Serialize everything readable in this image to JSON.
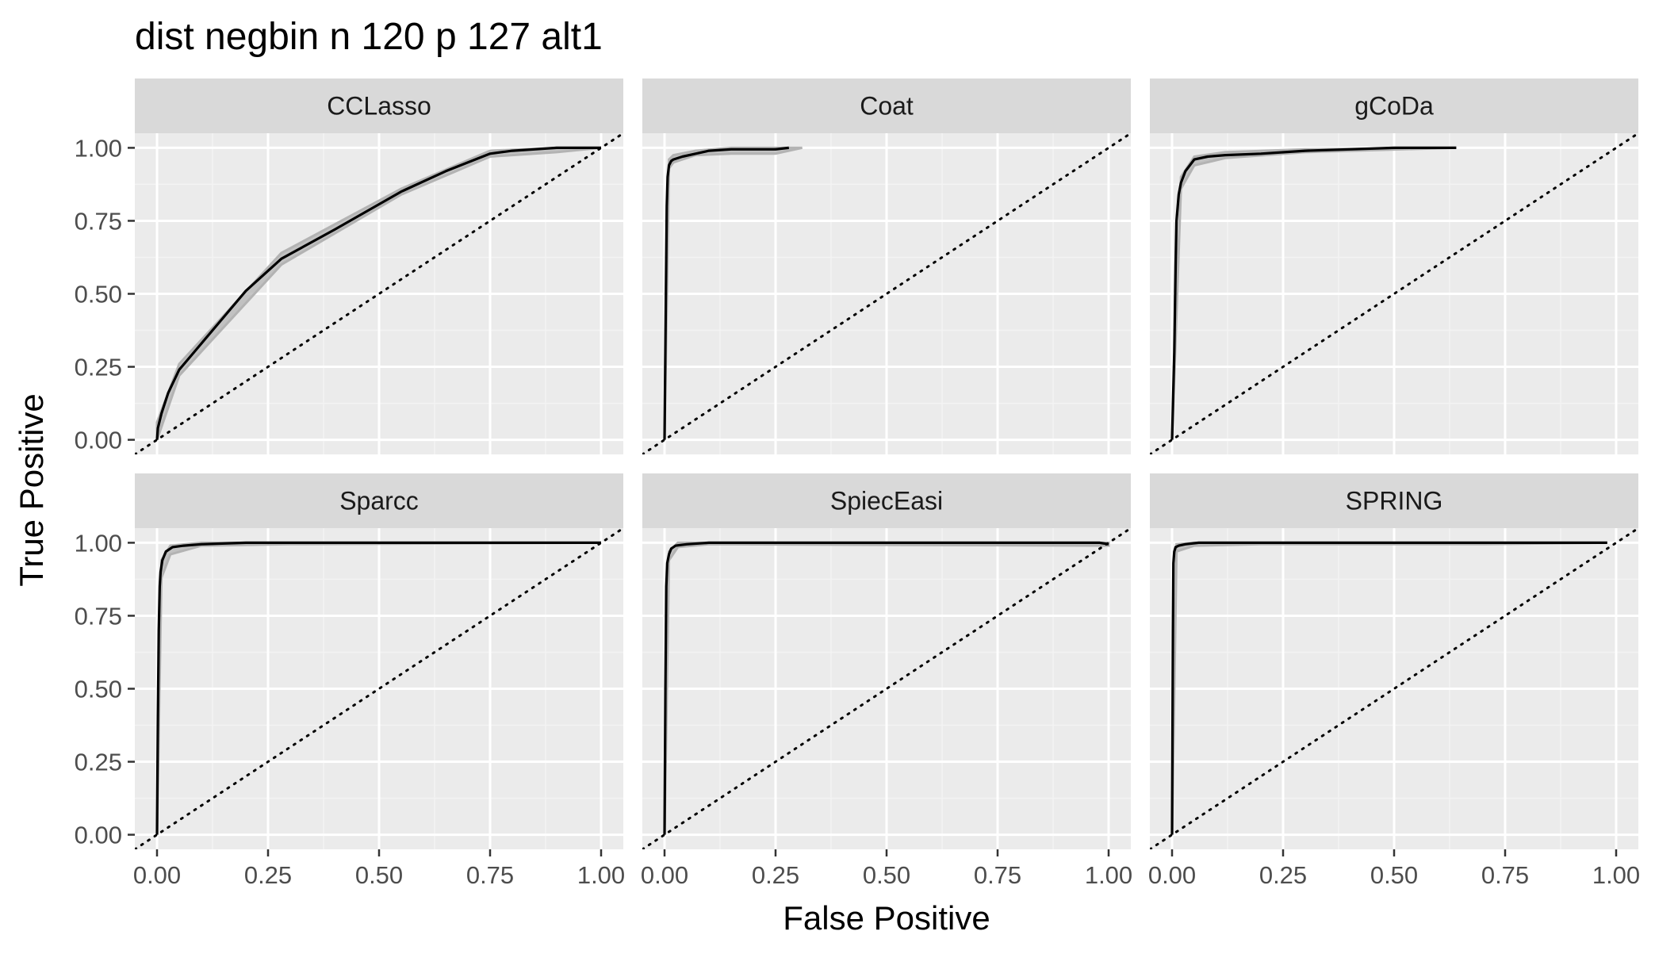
{
  "chart_data": {
    "type": "line",
    "title": "dist negbin n 120 p 127 alt1",
    "xlabel": "False Positive",
    "ylabel": "True Positive",
    "xlim": [
      -0.05,
      1.05
    ],
    "ylim": [
      -0.05,
      1.05
    ],
    "x_ticks": [
      0.0,
      0.25,
      0.5,
      0.75,
      1.0
    ],
    "y_ticks": [
      0.0,
      0.25,
      0.5,
      0.75,
      1.0
    ],
    "x_tick_labels": [
      "0.00",
      "0.25",
      "0.50",
      "0.75",
      "1.00"
    ],
    "y_tick_labels": [
      "0.00",
      "0.25",
      "0.50",
      "0.75",
      "1.00"
    ],
    "grid": true,
    "reference_line": {
      "style": "dotted",
      "from": [
        -0.05,
        -0.05
      ],
      "to": [
        1.05,
        1.05
      ]
    },
    "colors": {
      "panel_bg": "#ebebeb",
      "strip_bg": "#d9d9d9",
      "grid_major": "#ffffff",
      "grid_minor": "#f3f3f3",
      "curve": "#000000",
      "band": "#b3b3b3",
      "text": "#1a1a1a",
      "tick_text": "#4d4d4d"
    },
    "panels": [
      {
        "name": "CCLasso",
        "x": [
          0,
          0.002,
          0.01,
          0.025,
          0.05,
          0.1,
          0.15,
          0.2,
          0.28,
          0.4,
          0.55,
          0.65,
          0.75,
          0.8,
          0.85,
          0.9,
          0.95,
          1.0
        ],
        "y": [
          0,
          0.04,
          0.09,
          0.16,
          0.24,
          0.33,
          0.42,
          0.51,
          0.62,
          0.72,
          0.85,
          0.92,
          0.98,
          0.99,
          0.995,
          1.0,
          1.0,
          1.0
        ],
        "band": {
          "x": [
            0,
            0.05,
            0.28,
            0.55,
            0.75,
            0.9,
            1.0
          ],
          "lower": [
            0,
            0.22,
            0.6,
            0.84,
            0.97,
            0.985,
            1.0
          ],
          "upper": [
            0.06,
            0.26,
            0.64,
            0.86,
            0.99,
            1.0,
            1.0
          ]
        }
      },
      {
        "name": "Coat",
        "x": [
          0,
          0.003,
          0.005,
          0.007,
          0.01,
          0.015,
          0.02,
          0.04,
          0.07,
          0.1,
          0.15,
          0.2,
          0.25,
          0.28
        ],
        "y": [
          0,
          0.5,
          0.8,
          0.9,
          0.94,
          0.955,
          0.96,
          0.97,
          0.98,
          0.99,
          0.995,
          0.995,
          0.995,
          1.0
        ],
        "band": {
          "x": [
            0,
            0.01,
            0.02,
            0.07,
            0.15,
            0.25,
            0.31
          ],
          "lower": [
            0,
            0.93,
            0.95,
            0.975,
            0.98,
            0.98,
            1.0
          ],
          "upper": [
            0,
            0.96,
            0.975,
            0.99,
            1.0,
            1.0,
            1.0
          ]
        }
      },
      {
        "name": "gCoDa",
        "x": [
          0,
          0.005,
          0.008,
          0.01,
          0.015,
          0.02,
          0.03,
          0.05,
          0.08,
          0.12,
          0.2,
          0.3,
          0.4,
          0.5,
          0.64
        ],
        "y": [
          0,
          0.3,
          0.6,
          0.75,
          0.84,
          0.88,
          0.92,
          0.96,
          0.97,
          0.975,
          0.98,
          0.99,
          0.995,
          1.0,
          1.0
        ],
        "band": {
          "x": [
            0,
            0.02,
            0.05,
            0.12,
            0.3,
            0.64
          ],
          "lower": [
            0,
            0.86,
            0.94,
            0.965,
            0.985,
            1.0
          ],
          "upper": [
            0,
            0.9,
            0.97,
            0.985,
            0.995,
            1.0
          ]
        }
      },
      {
        "name": "Sparcc",
        "x": [
          0,
          0.002,
          0.004,
          0.006,
          0.008,
          0.012,
          0.02,
          0.035,
          0.06,
          0.1,
          0.2,
          0.4,
          0.6,
          0.8,
          1.0
        ],
        "y": [
          0,
          0.4,
          0.7,
          0.85,
          0.9,
          0.94,
          0.97,
          0.985,
          0.99,
          0.995,
          1.0,
          1.0,
          1.0,
          1.0,
          1.0
        ],
        "band": {
          "x": [
            0,
            0.01,
            0.03,
            0.1,
            0.3,
            1.0
          ],
          "lower": [
            0,
            0.88,
            0.96,
            0.99,
            0.995,
            1.0
          ],
          "upper": [
            0,
            0.94,
            0.99,
            1.0,
            1.0,
            1.0
          ]
        }
      },
      {
        "name": "SpiecEasi",
        "x": [
          0,
          0.002,
          0.004,
          0.006,
          0.01,
          0.015,
          0.025,
          0.05,
          0.1,
          0.3,
          0.6,
          0.9,
          0.98,
          1.0
        ],
        "y": [
          0,
          0.5,
          0.85,
          0.93,
          0.96,
          0.98,
          0.99,
          0.995,
          1.0,
          1.0,
          1.0,
          1.0,
          1.0,
          0.995
        ],
        "band": {
          "x": [
            0,
            0.01,
            0.03,
            0.1,
            1.0
          ],
          "lower": [
            0,
            0.94,
            0.985,
            0.995,
            0.99
          ],
          "upper": [
            0,
            0.97,
            1.0,
            1.0,
            1.0
          ]
        }
      },
      {
        "name": "SPRING",
        "x": [
          0,
          0.002,
          0.003,
          0.005,
          0.008,
          0.015,
          0.03,
          0.06,
          0.15,
          0.4,
          0.7,
          0.9,
          0.98
        ],
        "y": [
          0,
          0.7,
          0.93,
          0.97,
          0.985,
          0.99,
          0.995,
          1.0,
          1.0,
          1.0,
          1.0,
          1.0,
          1.0
        ],
        "band": {
          "x": [
            0,
            0.01,
            0.05,
            0.2,
            0.7,
            0.98
          ],
          "lower": [
            0,
            0.97,
            0.99,
            0.995,
            0.995,
            1.0
          ],
          "upper": [
            0,
            0.995,
            1.0,
            1.0,
            1.0,
            1.0
          ]
        }
      }
    ]
  }
}
